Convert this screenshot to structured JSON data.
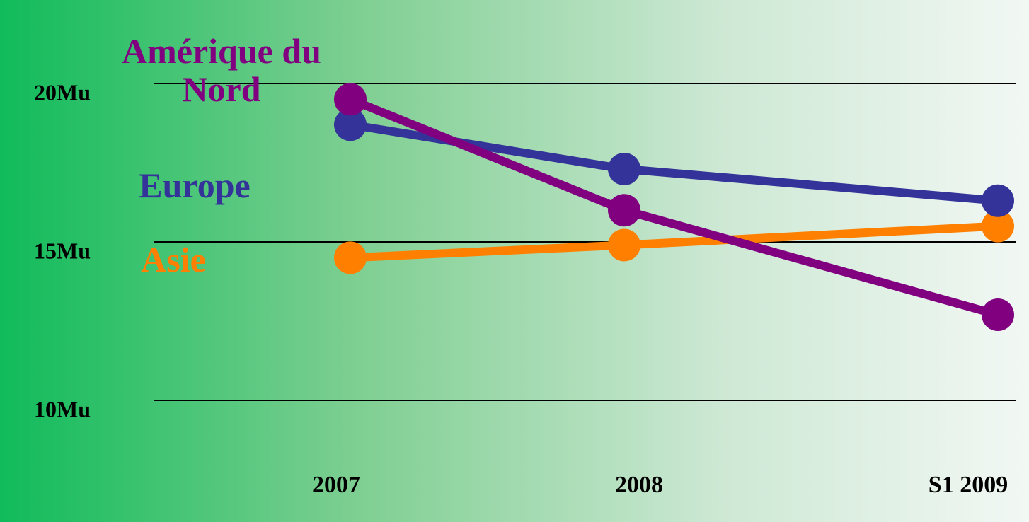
{
  "chart_data": {
    "type": "line",
    "categories": [
      "2007",
      "2008",
      "S1 2009"
    ],
    "series": [
      {
        "name": "Asie",
        "color": "#ff8000",
        "values": [
          14.5,
          14.9,
          15.5
        ]
      },
      {
        "name": "Europe",
        "color": "#333399",
        "values": [
          18.7,
          17.3,
          16.3
        ]
      },
      {
        "name": "Amérique du Nord",
        "color": "#800080",
        "values": [
          19.5,
          16.0,
          12.7
        ]
      }
    ],
    "ylim": [
      10,
      20
    ],
    "yticks": [
      {
        "value": 10,
        "label": "10Mu"
      },
      {
        "value": 15,
        "label": "15Mu"
      },
      {
        "value": 20,
        "label": "20Mu"
      }
    ],
    "grid": true
  }
}
